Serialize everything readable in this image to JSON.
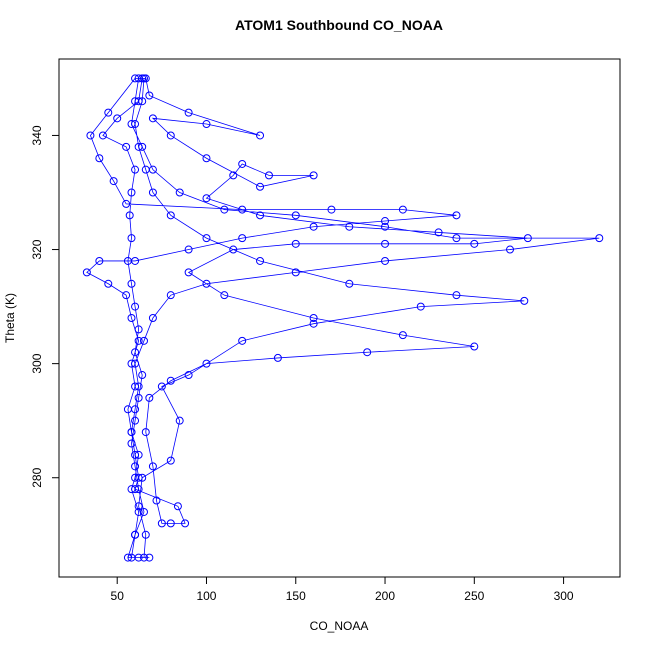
{
  "chart_data": {
    "type": "line",
    "title": "ATOM1 Southbound CO_NOAA",
    "x_label": "CO_NOAA",
    "y_label": "Theta (K)",
    "x": [
      62,
      60,
      58,
      64,
      70,
      85,
      110,
      150,
      200,
      240,
      320,
      270,
      200,
      150,
      100,
      80,
      70,
      65,
      60,
      62,
      60,
      58,
      62,
      60,
      58,
      62,
      60,
      58,
      65,
      66,
      62,
      64,
      80,
      85,
      75,
      90,
      120,
      160,
      220,
      278,
      240,
      180,
      130,
      100,
      80,
      70,
      66,
      62,
      60,
      64,
      65,
      60,
      45,
      35,
      40,
      48,
      55,
      120,
      170,
      210,
      240,
      200,
      160,
      120,
      90,
      60,
      40,
      33,
      45,
      55,
      58,
      62,
      58,
      60,
      56,
      58,
      60,
      62,
      60,
      84,
      88,
      80,
      75,
      72,
      70,
      66,
      68,
      80,
      100,
      140,
      190,
      250,
      210,
      160,
      110,
      90,
      115,
      150,
      200,
      250,
      280,
      230,
      180,
      130,
      100,
      115,
      120,
      135,
      160,
      130,
      100,
      80,
      70,
      100,
      130,
      90,
      68,
      66,
      64,
      62,
      50,
      42,
      55,
      60,
      58,
      57,
      58,
      56,
      58,
      60,
      62,
      60,
      64,
      62,
      60,
      58,
      60,
      62,
      65,
      60,
      56,
      62,
      68
    ],
    "series": [
      {
        "name": "CO_NOAA",
        "color": "#0000ff",
        "values": [
          350,
          346,
          342,
          338,
          334,
          330,
          327,
          326,
          324,
          322,
          322,
          320,
          318,
          316,
          314,
          312,
          308,
          304,
          300,
          296,
          292,
          288,
          284,
          280,
          278,
          274,
          270,
          266,
          266,
          270,
          275,
          280,
          283,
          290,
          296,
          298,
          304,
          307,
          310,
          311,
          312,
          314,
          318,
          322,
          326,
          330,
          334,
          338,
          342,
          346,
          350,
          350,
          344,
          340,
          336,
          332,
          328,
          327,
          327,
          327,
          326,
          325,
          324,
          322,
          320,
          318,
          318,
          316,
          314,
          312,
          308,
          304,
          300,
          296,
          292,
          288,
          284,
          280,
          278,
          275,
          272,
          272,
          272,
          276,
          282,
          288,
          294,
          297,
          300,
          301,
          302,
          303,
          305,
          308,
          312,
          316,
          320,
          321,
          321,
          321,
          322,
          323,
          324,
          326,
          329,
          333,
          335,
          333,
          333,
          331,
          336,
          340,
          343,
          342,
          340,
          344,
          347,
          350,
          350,
          346,
          343,
          340,
          338,
          334,
          330,
          326,
          322,
          318,
          314,
          310,
          306,
          302,
          298,
          294,
          290,
          286,
          282,
          278,
          274,
          270,
          266,
          266,
          266
        ]
      }
    ],
    "xlim": [
      17.4,
      331.6
    ],
    "ylim": [
      262.6,
      353.4
    ],
    "xticks": [
      50,
      100,
      150,
      200,
      250,
      300
    ],
    "yticks": [
      280,
      300,
      320,
      340
    ]
  }
}
